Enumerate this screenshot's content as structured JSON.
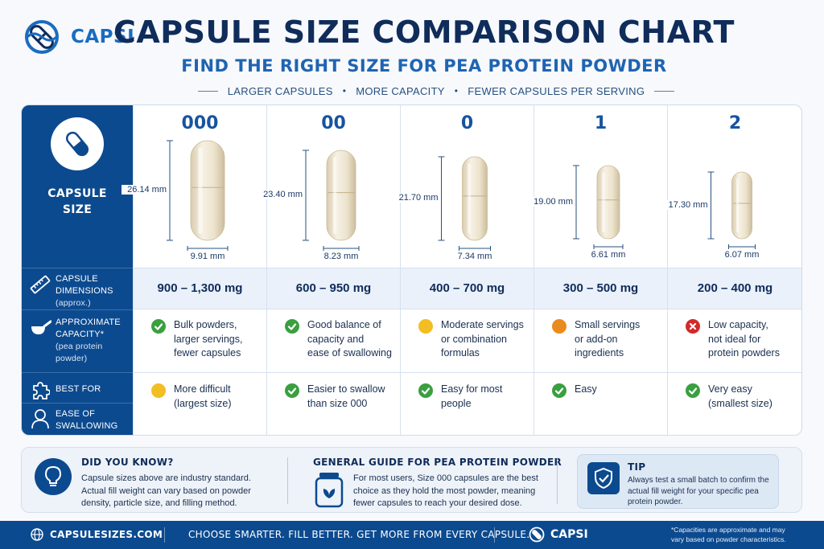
{
  "brand": {
    "name": "CAPSI"
  },
  "header": {
    "title": "CAPSULE SIZE COMPARISON CHART",
    "subtitle": "FIND THE RIGHT SIZE FOR PEA PROTEIN POWDER",
    "taglines": [
      "LARGER CAPSULES",
      "MORE CAPACITY",
      "FEWER CAPSULES PER SERVING"
    ]
  },
  "rows": {
    "size": {
      "label_line1": "CAPSULE",
      "label_line2": "SIZE"
    },
    "dimensions": {
      "line1": "CAPSULE",
      "line2": "DIMENSIONS",
      "sub": "(approx.)"
    },
    "capacity": {
      "line1": "APPROXIMATE",
      "line2": "CAPACITY*",
      "sub1": "(pea protein",
      "sub2": "powder)"
    },
    "best_for": {
      "label": "BEST FOR"
    },
    "swallowing": {
      "line1": "EASE OF",
      "line2": "SWALLOWING"
    }
  },
  "capsules": [
    {
      "size": "000",
      "length": "26.14 mm",
      "width": "9.91 mm",
      "capacity": "900 – 1,300 mg",
      "cap_status": "green",
      "cap_lines": [
        "Bulk powders,",
        "larger servings,",
        "fewer capsules"
      ],
      "best_status": "yellow",
      "best_lines": [
        "More difficult",
        "(largest size)"
      ]
    },
    {
      "size": "00",
      "length": "23.40 mm",
      "width": "8.23 mm",
      "capacity": "600 – 950 mg",
      "cap_status": "green",
      "cap_lines": [
        "Good balance of",
        "capacity and",
        "ease of swallowing"
      ],
      "best_status": "green",
      "best_lines": [
        "Easier to swallow",
        "than size 000"
      ]
    },
    {
      "size": "0",
      "length": "21.70 mm",
      "width": "7.34 mm",
      "capacity": "400 – 700 mg",
      "cap_status": "yellow",
      "cap_lines": [
        "Moderate servings",
        "or combination",
        "formulas"
      ],
      "best_status": "green",
      "best_lines": [
        "Easy for most",
        "people"
      ]
    },
    {
      "size": "1",
      "length": "19.00 mm",
      "width": "6.61 mm",
      "capacity": "300 – 500 mg",
      "cap_status": "orange",
      "cap_lines": [
        "Small servings",
        "or add-on",
        "ingredients"
      ],
      "best_status": "green",
      "best_lines": [
        "Easy"
      ]
    },
    {
      "size": "2",
      "length": "17.30 mm",
      "width": "6.07 mm",
      "capacity": "200 – 400 mg",
      "cap_status": "red",
      "cap_lines": [
        "Low capacity,",
        "not ideal for",
        "protein powders"
      ],
      "best_status": "green",
      "best_lines": [
        "Very easy",
        "(smallest size)"
      ]
    }
  ],
  "info": {
    "did_you_know": {
      "title": "DID YOU KNOW?",
      "lines": [
        "Capsule sizes above are industry standard.",
        "Actual fill weight can vary based on powder",
        "density, particle size, and filling method."
      ]
    },
    "guide": {
      "title": "GENERAL GUIDE FOR PEA PROTEIN POWDER",
      "lines": [
        "For most users, Size 000 capsules are the best",
        "choice as they hold the most powder, meaning",
        "fewer capsules to reach your desired dose."
      ]
    },
    "tip": {
      "title": "TIP",
      "lines": [
        "Always test a small batch to confirm the",
        "actual fill weight for your specific pea",
        "protein powder."
      ]
    }
  },
  "footer": {
    "site": "CAPSULESIZES.COM",
    "slogan": "CHOOSE SMARTER. FILL BETTER. GET MORE FROM EVERY CAPSULE.",
    "logo": "CAPSI",
    "note_lines": [
      "*Capacities are approximate and may",
      "vary based on powder characteristics."
    ]
  },
  "colors": {
    "navy": "#0c4a8f",
    "green": "#3a9f3f",
    "yellow": "#f2be22",
    "orange": "#e98b1e",
    "red": "#d12a2a"
  }
}
